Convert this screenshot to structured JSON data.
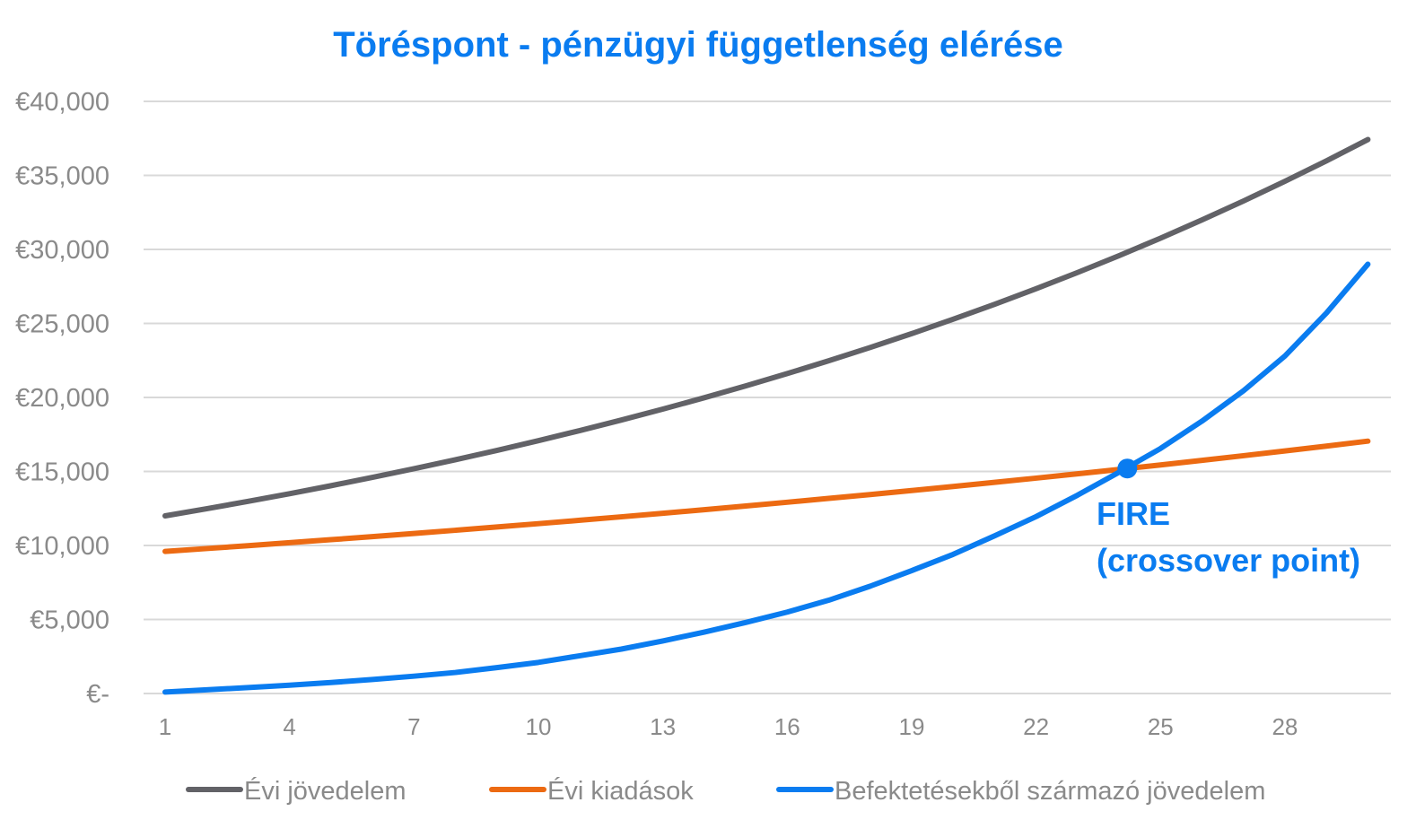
{
  "chart_data": {
    "type": "line",
    "title": "Töréspont - pénzügyi függetlenség elérése",
    "xlabel": "",
    "ylabel": "",
    "x": [
      1,
      2,
      3,
      4,
      5,
      6,
      7,
      8,
      9,
      10,
      11,
      12,
      13,
      14,
      15,
      16,
      17,
      18,
      19,
      20,
      21,
      22,
      23,
      24,
      25,
      26,
      27,
      28,
      29,
      30
    ],
    "xticks": [
      1,
      4,
      7,
      10,
      13,
      16,
      19,
      22,
      25,
      28
    ],
    "ylim": [
      0,
      40000
    ],
    "yticks": [
      {
        "value": 0,
        "label": "€-"
      },
      {
        "value": 5000,
        "label": "€5,000"
      },
      {
        "value": 10000,
        "label": "€10,000"
      },
      {
        "value": 15000,
        "label": "€15,000"
      },
      {
        "value": 20000,
        "label": "€20,000"
      },
      {
        "value": 25000,
        "label": "€25,000"
      },
      {
        "value": 30000,
        "label": "€30,000"
      },
      {
        "value": 35000,
        "label": "€35,000"
      },
      {
        "value": 40000,
        "label": "€40,000"
      }
    ],
    "grid": true,
    "legend_position": "bottom",
    "series": [
      {
        "name": "Évi jövedelem",
        "color": "#626267",
        "values": [
          12000,
          12480,
          12979,
          13498,
          14038,
          14600,
          15184,
          15791,
          16423,
          17080,
          17763,
          18473,
          19212,
          19981,
          20780,
          21611,
          22476,
          23375,
          24310,
          25282,
          26293,
          27345,
          28439,
          29576,
          30759,
          31990,
          33269,
          34600,
          35984,
          37423
        ]
      },
      {
        "name": "Évi kiadások",
        "color": "#ec6a12",
        "values": [
          9600,
          9792,
          9988,
          10188,
          10391,
          10599,
          10811,
          11027,
          11248,
          11473,
          11702,
          11936,
          12175,
          12419,
          12667,
          12920,
          13179,
          13442,
          13711,
          13985,
          14265,
          14550,
          14841,
          15138,
          15441,
          15750,
          16065,
          16386,
          16714,
          17048
        ]
      },
      {
        "name": "Befektetésekből származó jövedelem",
        "color": "#0a7cf0",
        "values": [
          100,
          250,
          400,
          560,
          740,
          950,
          1170,
          1420,
          1750,
          2100,
          2550,
          3000,
          3550,
          4150,
          4800,
          5500,
          6300,
          7250,
          8300,
          9400,
          10650,
          11950,
          13400,
          14950,
          16550,
          18400,
          20450,
          22800,
          25700,
          29000
        ]
      }
    ],
    "annotations": [
      {
        "text_line1": "FIRE",
        "text_line2": "(crossover point)",
        "x": 24.2,
        "y": 15200,
        "color": "#0a7cf0"
      }
    ]
  }
}
